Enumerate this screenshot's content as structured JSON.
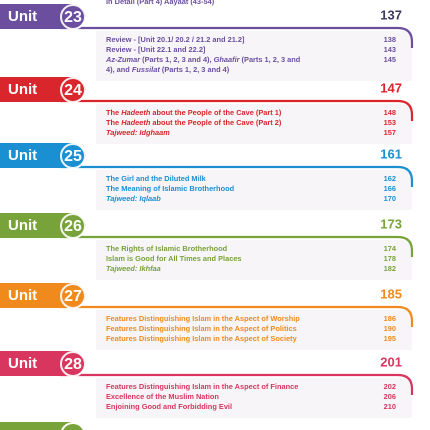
{
  "top_partial": {
    "text": "In Detail (Part 4) Aayaat (43-54)",
    "color": "#6b4f9e"
  },
  "unit_word": "Unit",
  "units": [
    {
      "number": "23",
      "page": "137",
      "color": "#6b4f9e",
      "entries": [
        {
          "lines": [
            [
              {
                "text": "Review - [Unit 20.1/ 20.2 / 21.2 and 21.2]",
                "italic": false
              }
            ]
          ],
          "page": "138"
        },
        {
          "lines": [
            [
              {
                "text": "Review - [Unit 22.1 and 22.2]",
                "italic": false
              }
            ]
          ],
          "page": "143"
        },
        {
          "lines": [
            [
              {
                "text": "Az-Zumar",
                "italic": true
              },
              {
                "text": " (Parts 1, 2, 3 and 4), ",
                "italic": false
              },
              {
                "text": "Ghaafir",
                "italic": true
              },
              {
                "text": " (Parts 1, 2, 3 and",
                "italic": false
              }
            ],
            [
              {
                "text": "4), and ",
                "italic": false
              },
              {
                "text": "Fussilat",
                "italic": true
              },
              {
                "text": " (Parts 1, 2, 3 and 4)",
                "italic": false
              }
            ]
          ],
          "page": "145"
        }
      ]
    },
    {
      "number": "24",
      "page": "147",
      "color": "#d8262c",
      "entries": [
        {
          "lines": [
            [
              {
                "text": "The ",
                "italic": false
              },
              {
                "text": "Hadeeth",
                "italic": true
              },
              {
                "text": " about the People of the Cave (Part 1)",
                "italic": false
              }
            ]
          ],
          "page": "148"
        },
        {
          "lines": [
            [
              {
                "text": "The ",
                "italic": false
              },
              {
                "text": "Hadeeth",
                "italic": true
              },
              {
                "text": " about the People of the Cave (Part 2)",
                "italic": false
              }
            ]
          ],
          "page": "153"
        },
        {
          "lines": [
            [
              {
                "text": "Tajweed: Idghaam",
                "italic": true
              }
            ]
          ],
          "page": "157"
        }
      ]
    },
    {
      "number": "25",
      "page": "161",
      "color": "#1a8fd1",
      "entries": [
        {
          "lines": [
            [
              {
                "text": "The Girl and the Diluted Milk",
                "italic": false
              }
            ]
          ],
          "page": "162"
        },
        {
          "lines": [
            [
              {
                "text": "The Meaning of Islamic Brotherhood",
                "italic": false
              }
            ]
          ],
          "page": "166"
        },
        {
          "lines": [
            [
              {
                "text": "Tajweed: Iqlaab",
                "italic": true
              }
            ]
          ],
          "page": "170"
        }
      ]
    },
    {
      "number": "26",
      "page": "173",
      "color": "#78a23a",
      "entries": [
        {
          "lines": [
            [
              {
                "text": "The Rights of Islamic Brotherhood",
                "italic": false
              }
            ]
          ],
          "page": "174"
        },
        {
          "lines": [
            [
              {
                "text": "Islam is Good for All Times and Places",
                "italic": false
              }
            ]
          ],
          "page": "178"
        },
        {
          "lines": [
            [
              {
                "text": "Tajweed: Ikhfaa",
                "italic": true
              }
            ]
          ],
          "page": "182"
        }
      ]
    },
    {
      "number": "27",
      "page": "185",
      "color": "#f08a1d",
      "entries": [
        {
          "lines": [
            [
              {
                "text": "Features Distinguishing Islam in the Aspect of Worship",
                "italic": false
              }
            ]
          ],
          "page": "186"
        },
        {
          "lines": [
            [
              {
                "text": "Features Distinguishing Islam in the Aspect of Politics",
                "italic": false
              }
            ]
          ],
          "page": "190"
        },
        {
          "lines": [
            [
              {
                "text": "Features Distinguishing Islam in the Aspect of Society",
                "italic": false
              }
            ]
          ],
          "page": "195"
        }
      ]
    },
    {
      "number": "28",
      "page": "201",
      "color": "#d8365f",
      "entries": [
        {
          "lines": [
            [
              {
                "text": "Features Distinguishing Islam in the Aspect of Finance",
                "italic": false
              }
            ]
          ],
          "page": "202"
        },
        {
          "lines": [
            [
              {
                "text": "Excellence of the Muslim Nation",
                "italic": false
              }
            ]
          ],
          "page": "206"
        },
        {
          "lines": [
            [
              {
                "text": "Enjoining Good and Forbidding Evil",
                "italic": false
              }
            ]
          ],
          "page": "210"
        }
      ]
    }
  ],
  "bottom_partial_color": "#78a23a"
}
